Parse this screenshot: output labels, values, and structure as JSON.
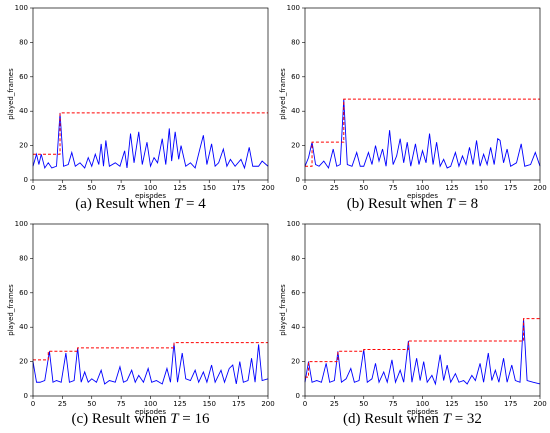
{
  "chart_data": [
    {
      "type": "line",
      "caption": "(a) Result when",
      "caption_var": "T",
      "caption_rest": "= 4",
      "xlabel": "episodes",
      "ylabel": "played_frames",
      "xlim": [
        0,
        200
      ],
      "ylim": [
        0,
        100
      ],
      "xticks": [
        0,
        25,
        50,
        75,
        100,
        125,
        150,
        175,
        200
      ],
      "yticks": [
        0,
        20,
        40,
        60,
        80,
        100
      ],
      "series": [
        {
          "color": "#0000ff",
          "x": [
            0,
            3,
            5,
            7,
            10,
            13,
            16,
            20,
            23,
            26,
            30,
            33,
            36,
            40,
            44,
            47,
            50,
            53,
            56,
            58,
            60,
            62,
            65,
            70,
            74,
            78,
            80,
            83,
            86,
            90,
            93,
            97,
            100,
            103,
            106,
            110,
            113,
            116,
            118,
            121,
            124,
            126,
            130,
            134,
            138,
            142,
            145,
            148,
            152,
            155,
            158,
            162,
            165,
            168,
            172,
            177,
            180,
            184,
            187,
            192,
            195,
            200
          ],
          "values": [
            8,
            15,
            9,
            15,
            7,
            10,
            7,
            8,
            39,
            8,
            9,
            16,
            8,
            10,
            7,
            13,
            8,
            15,
            9,
            21,
            8,
            23,
            8,
            10,
            8,
            17,
            7,
            27,
            10,
            28,
            9,
            22,
            8,
            13,
            10,
            24,
            9,
            30,
            11,
            28,
            12,
            20,
            8,
            10,
            7,
            18,
            26,
            9,
            21,
            8,
            10,
            18,
            8,
            12,
            8,
            12,
            7,
            19,
            8,
            8,
            11,
            8
          ]
        },
        {
          "color": "#ff0000",
          "dash": true,
          "x": [
            0,
            23,
            23,
            200
          ],
          "values": [
            15,
            15,
            39,
            39
          ]
        }
      ]
    },
    {
      "type": "line",
      "caption": "(b) Result when",
      "caption_var": "T",
      "caption_rest": "= 8",
      "xlabel": "episodes",
      "ylabel": "played_frames",
      "xlim": [
        0,
        200
      ],
      "ylim": [
        0,
        100
      ],
      "xticks": [
        0,
        25,
        50,
        75,
        100,
        125,
        150,
        175,
        200
      ],
      "yticks": [
        0,
        20,
        40,
        60,
        80,
        100
      ],
      "series": [
        {
          "color": "#0000ff",
          "x": [
            0,
            3,
            6,
            9,
            12,
            16,
            20,
            24,
            27,
            30,
            33,
            36,
            40,
            44,
            47,
            50,
            54,
            57,
            60,
            63,
            66,
            69,
            72,
            75,
            78,
            81,
            84,
            87,
            90,
            94,
            97,
            100,
            103,
            106,
            109,
            112,
            115,
            118,
            121,
            124,
            128,
            131,
            134,
            137,
            140,
            143,
            146,
            149,
            152,
            155,
            158,
            161,
            164,
            166,
            169,
            172,
            175,
            180,
            184,
            187,
            192,
            196,
            200
          ],
          "values": [
            8,
            13,
            22,
            9,
            8,
            11,
            7,
            18,
            8,
            9,
            47,
            9,
            8,
            16,
            8,
            8,
            16,
            9,
            20,
            11,
            18,
            8,
            29,
            9,
            14,
            24,
            10,
            22,
            8,
            21,
            9,
            17,
            10,
            27,
            9,
            22,
            8,
            12,
            7,
            8,
            16,
            8,
            14,
            9,
            19,
            9,
            23,
            8,
            15,
            9,
            19,
            9,
            24,
            23,
            10,
            18,
            8,
            10,
            21,
            8,
            9,
            16,
            8
          ]
        },
        {
          "color": "#ff0000",
          "dash": true,
          "x": [
            0,
            6,
            6,
            33,
            33,
            200
          ],
          "values": [
            8,
            8,
            22,
            22,
            47,
            47
          ]
        }
      ]
    },
    {
      "type": "line",
      "caption": "(c) Result when",
      "caption_var": "T",
      "caption_rest": "= 16",
      "xlabel": "episodes",
      "ylabel": "played_frames",
      "xlim": [
        0,
        200
      ],
      "ylim": [
        0,
        100
      ],
      "xticks": [
        0,
        25,
        50,
        75,
        100,
        125,
        150,
        175,
        200
      ],
      "yticks": [
        0,
        20,
        40,
        60,
        80,
        100
      ],
      "series": [
        {
          "color": "#0000ff",
          "x": [
            0,
            3,
            6,
            10,
            14,
            17,
            20,
            24,
            28,
            31,
            35,
            38,
            41,
            44,
            47,
            50,
            54,
            58,
            61,
            65,
            70,
            74,
            77,
            80,
            84,
            87,
            90,
            94,
            98,
            101,
            105,
            110,
            114,
            117,
            120,
            123,
            127,
            130,
            134,
            138,
            141,
            145,
            148,
            152,
            155,
            160,
            163,
            167,
            170,
            173,
            176,
            179,
            183,
            186,
            189,
            192,
            195,
            200
          ],
          "values": [
            20,
            8,
            8,
            9,
            26,
            8,
            9,
            8,
            25,
            8,
            9,
            28,
            8,
            14,
            8,
            10,
            8,
            15,
            7,
            9,
            8,
            17,
            8,
            9,
            15,
            8,
            12,
            8,
            16,
            8,
            9,
            7,
            16,
            8,
            31,
            8,
            25,
            10,
            9,
            15,
            8,
            14,
            8,
            18,
            8,
            15,
            8,
            16,
            18,
            7,
            20,
            8,
            9,
            22,
            8,
            30,
            9,
            10
          ]
        },
        {
          "color": "#ff0000",
          "dash": true,
          "x": [
            0,
            13,
            13,
            38,
            38,
            120,
            120,
            200
          ],
          "values": [
            21,
            21,
            26,
            26,
            28,
            28,
            31,
            31
          ]
        }
      ]
    },
    {
      "type": "line",
      "caption": "(d) Result when",
      "caption_var": "T",
      "caption_rest": "= 32",
      "xlabel": "episodes",
      "ylabel": "played_frames",
      "xlim": [
        0,
        200
      ],
      "ylim": [
        0,
        100
      ],
      "xticks": [
        0,
        25,
        50,
        75,
        100,
        125,
        150,
        175,
        200
      ],
      "yticks": [
        0,
        20,
        40,
        60,
        80,
        100
      ],
      "series": [
        {
          "color": "#0000ff",
          "x": [
            0,
            3,
            6,
            10,
            14,
            18,
            21,
            25,
            28,
            31,
            35,
            39,
            42,
            46,
            50,
            53,
            57,
            60,
            63,
            67,
            70,
            74,
            77,
            81,
            84,
            88,
            91,
            95,
            98,
            101,
            104,
            108,
            111,
            115,
            118,
            121,
            124,
            128,
            131,
            135,
            138,
            142,
            145,
            149,
            152,
            156,
            159,
            162,
            165,
            169,
            172,
            176,
            179,
            183,
            186,
            189,
            194,
            200
          ],
          "values": [
            8,
            20,
            8,
            9,
            8,
            19,
            8,
            9,
            26,
            8,
            10,
            16,
            8,
            9,
            27,
            8,
            10,
            19,
            8,
            14,
            8,
            21,
            8,
            15,
            8,
            32,
            8,
            22,
            9,
            20,
            8,
            12,
            7,
            24,
            9,
            18,
            8,
            13,
            8,
            9,
            7,
            12,
            9,
            19,
            8,
            25,
            9,
            15,
            8,
            22,
            8,
            18,
            9,
            8,
            45,
            9,
            8,
            7
          ]
        },
        {
          "color": "#ff0000",
          "dash": true,
          "x": [
            0,
            3,
            3,
            28,
            28,
            50,
            50,
            88,
            88,
            186,
            186,
            200
          ],
          "values": [
            11,
            11,
            20,
            20,
            26,
            26,
            27,
            27,
            32,
            32,
            45,
            45
          ]
        }
      ]
    }
  ]
}
